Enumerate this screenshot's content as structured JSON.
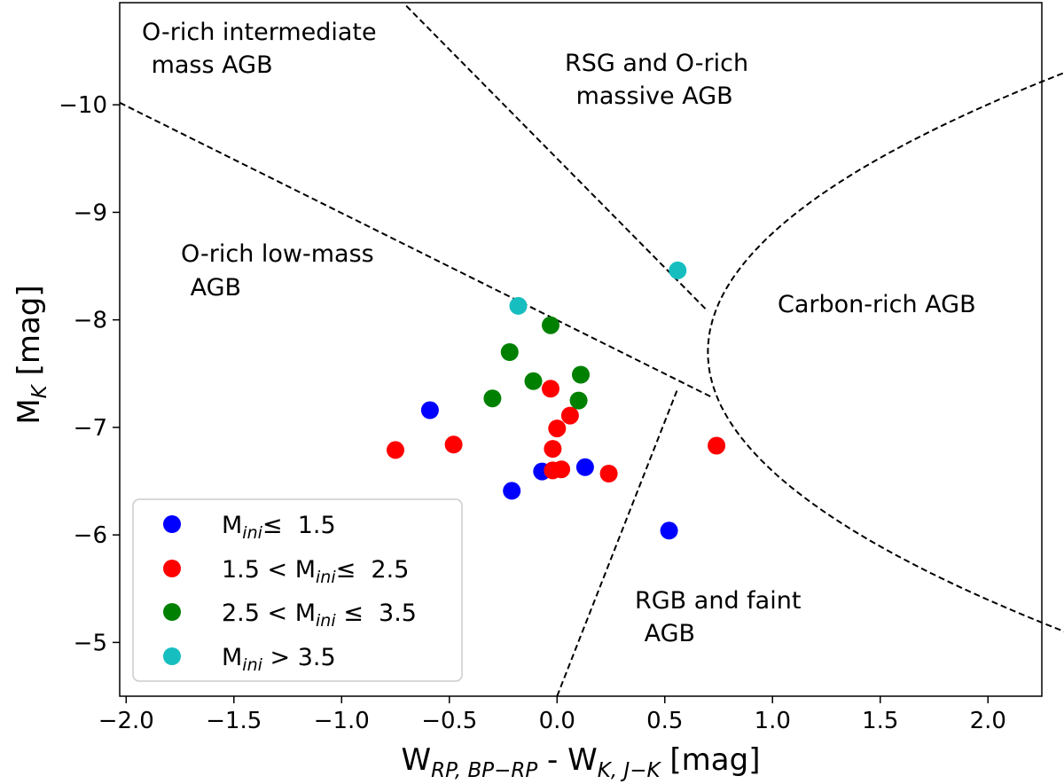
{
  "chart_data": {
    "type": "scatter",
    "title": "",
    "xlabel": {
      "main": "W",
      "sub1": "RP, BP−RP",
      "mid": " - W",
      "sub2": "K, J−K",
      "tail": " [mag]"
    },
    "ylabel": {
      "main": "M",
      "sub": "K",
      "tail": " [mag]"
    },
    "xlim": [
      -2.03,
      2.25
    ],
    "ylim": [
      -4.5,
      -10.95
    ],
    "x_ticks": [
      {
        "value": -2.0,
        "label": "−2.0"
      },
      {
        "value": -1.5,
        "label": "−1.5"
      },
      {
        "value": -1.0,
        "label": "−1.0"
      },
      {
        "value": -0.5,
        "label": "−0.5"
      },
      {
        "value": 0.0,
        "label": "0.0"
      },
      {
        "value": 0.5,
        "label": "0.5"
      },
      {
        "value": 1.0,
        "label": "1.0"
      },
      {
        "value": 1.5,
        "label": "1.5"
      },
      {
        "value": 2.0,
        "label": "2.0"
      }
    ],
    "y_ticks": [
      {
        "value": -10,
        "label": "−10"
      },
      {
        "value": -9,
        "label": "−9"
      },
      {
        "value": -8,
        "label": "−8"
      },
      {
        "value": -7,
        "label": "−7"
      },
      {
        "value": -6,
        "label": "−6"
      },
      {
        "value": -5,
        "label": "−5"
      }
    ],
    "series": [
      {
        "name": "M_ini ≤ 1.5",
        "color": "#0000ff",
        "legend": {
          "main": "M",
          "sub": "ini",
          "tail": "≤  1.5"
        },
        "points": [
          [
            -0.59,
            -7.16
          ],
          [
            -0.21,
            -6.41
          ],
          [
            -0.07,
            -6.59
          ],
          [
            0.13,
            -6.63
          ],
          [
            0.52,
            -6.04
          ]
        ]
      },
      {
        "name": "1.5 < M_ini ≤ 2.5",
        "color": "#ff0000",
        "legend": {
          "head": "1.5 < M",
          "sub": "ini",
          "tail": "≤  2.5"
        },
        "points": [
          [
            -0.75,
            -6.79
          ],
          [
            -0.48,
            -6.84
          ],
          [
            -0.03,
            -7.36
          ],
          [
            0.06,
            -7.11
          ],
          [
            0.0,
            -6.99
          ],
          [
            -0.02,
            -6.8
          ],
          [
            -0.02,
            -6.6
          ],
          [
            0.02,
            -6.61
          ],
          [
            0.24,
            -6.57
          ],
          [
            0.74,
            -6.83
          ]
        ]
      },
      {
        "name": "2.5 < M_ini ≤ 3.5",
        "color": "#008000",
        "legend": {
          "head": "2.5 < M",
          "sub": "ini",
          "tail": " ≤  3.5"
        },
        "points": [
          [
            -0.03,
            -7.95
          ],
          [
            -0.22,
            -7.7
          ],
          [
            -0.11,
            -7.43
          ],
          [
            0.11,
            -7.49
          ],
          [
            -0.3,
            -7.27
          ],
          [
            0.1,
            -7.25
          ]
        ]
      },
      {
        "name": "M_ini > 3.5",
        "color": "#17bebf",
        "legend": {
          "main": "M",
          "sub": "ini",
          "tail": " > 3.5"
        },
        "points": [
          [
            -0.18,
            -8.13
          ],
          [
            0.56,
            -8.46
          ]
        ]
      }
    ],
    "boundaries": [
      {
        "name": "O-rich intermediate / low-mass boundary",
        "points": [
          [
            -2.03,
            -10.02
          ],
          [
            0.72,
            -7.28
          ]
        ]
      },
      {
        "name": "RSG boundary",
        "points": [
          [
            -0.7,
            -10.92
          ],
          [
            0.7,
            -8.08
          ]
        ]
      },
      {
        "name": "RGB boundary",
        "points": [
          [
            0.0,
            -4.5
          ],
          [
            0.56,
            -7.36
          ]
        ]
      },
      {
        "name": "Carbon-rich boundary",
        "type": "parabola",
        "vertex": [
          0.7,
          -7.7
        ],
        "coef": 0.245
      }
    ],
    "regions": [
      {
        "name": "region-o-rich-intermediate",
        "lines": [
          "O-rich intermediate",
          " mass AGB"
        ]
      },
      {
        "name": "region-rsg",
        "lines": [
          "RSG and O-rich",
          " massive AGB"
        ]
      },
      {
        "name": "region-o-rich-low-mass",
        "lines": [
          "O-rich low-mass",
          " AGB"
        ]
      },
      {
        "name": "region-carbon-rich",
        "lines": [
          "Carbon-rich AGB"
        ]
      },
      {
        "name": "region-rgb",
        "lines": [
          "RGB and faint",
          " AGB"
        ]
      }
    ],
    "legend_position": "lower-left"
  }
}
